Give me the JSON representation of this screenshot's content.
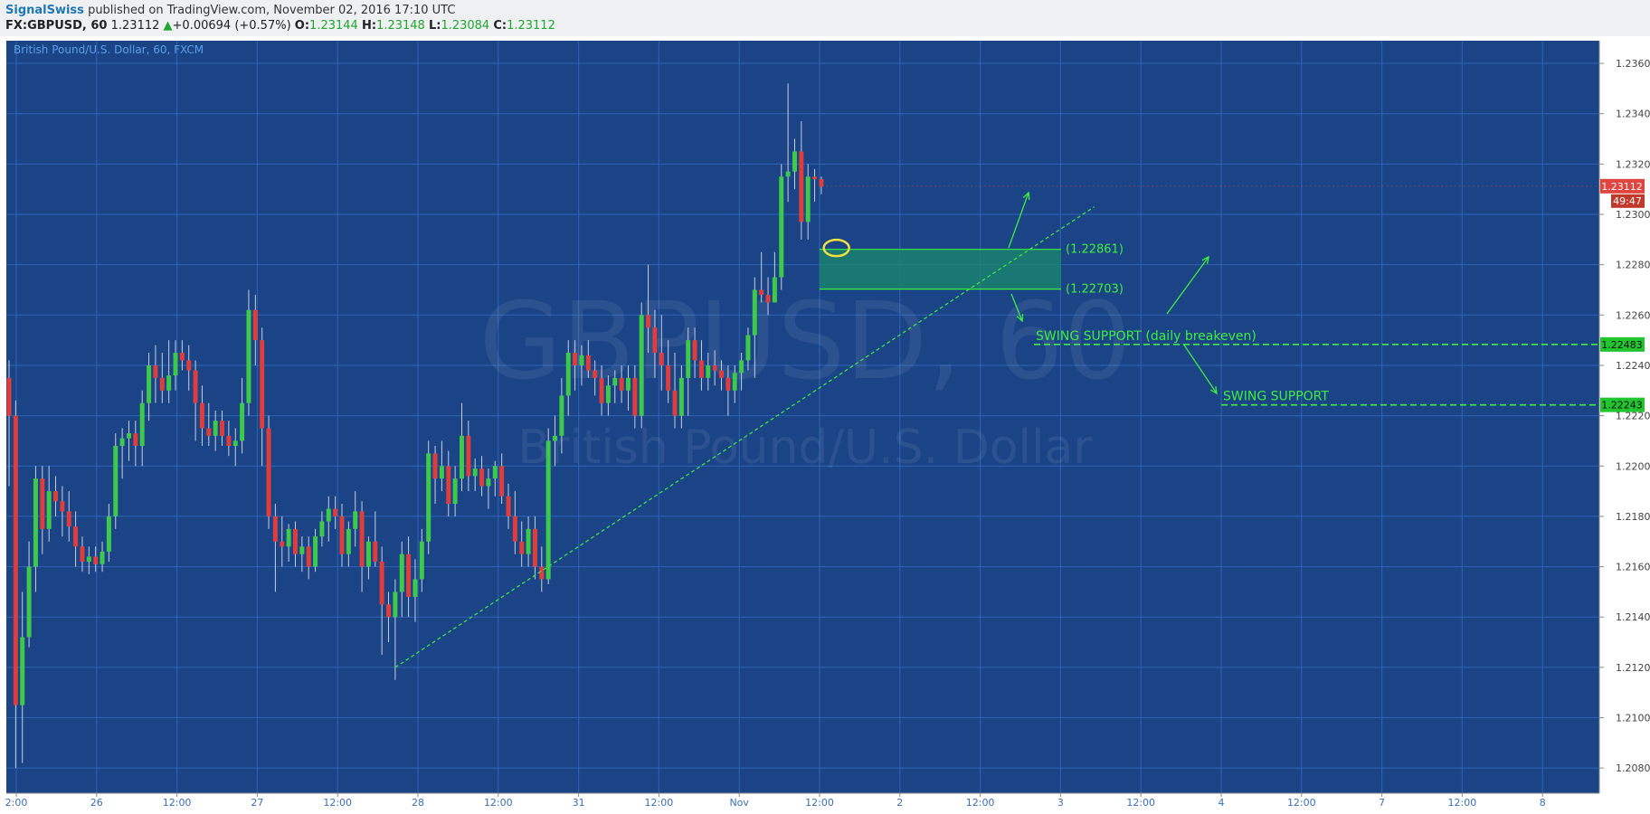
{
  "header": {
    "author": "SignalSwiss",
    "published": "published on TradingView.com, November 02, 2016 17:10 UTC",
    "symbol": "FX:GBPUSD, 60",
    "last": "1.23112",
    "change": "+0.00694 (+0.57%)",
    "o_label": "O:",
    "o": "1.23144",
    "h_label": "H:",
    "h": "1.23148",
    "l_label": "L:",
    "l": "1.23084",
    "c_label": "C:",
    "c": "1.23112"
  },
  "colors": {
    "background": "#1b4487",
    "grid": "#2e63b4",
    "up": "#3dc94a",
    "down": "#e03c3c",
    "annotation": "#3dee3d",
    "accent": "#f0e040",
    "price_tag": "#e0453f"
  },
  "chart_data": {
    "type": "candlestick",
    "title": "British Pound/U.S. Dollar, 60, FXCM",
    "watermark": "GBPUSD, 60",
    "watermark_sub": "British Pound/U.S. Dollar",
    "ylim": [
      1.207,
      1.2369
    ],
    "y_ticks": [
      "1.20800",
      "1.21000",
      "1.21200",
      "1.21400",
      "1.21600",
      "1.21800",
      "1.22000",
      "1.22200",
      "1.22400",
      "1.22600",
      "1.22800",
      "1.23000",
      "1.23200",
      "1.23400",
      "1.23600"
    ],
    "x_ticks": [
      "2:00",
      "26",
      "12:00",
      "27",
      "12:00",
      "28",
      "12:00",
      "31",
      "12:00",
      "Nov",
      "12:00",
      "2",
      "12:00",
      "3",
      "12:00",
      "4",
      "12:00",
      "7",
      "12:00",
      "8"
    ],
    "candles": [
      [
        1.2235,
        1.2242,
        1.2192,
        1.222
      ],
      [
        1.222,
        1.2226,
        1.208,
        1.2105
      ],
      [
        1.2105,
        1.215,
        1.2082,
        1.2132
      ],
      [
        1.2132,
        1.217,
        1.2128,
        1.216
      ],
      [
        1.216,
        1.22,
        1.215,
        1.2195
      ],
      [
        1.2195,
        1.22,
        1.2165,
        1.2175
      ],
      [
        1.2175,
        1.22,
        1.217,
        1.219
      ],
      [
        1.219,
        1.2196,
        1.218,
        1.2186
      ],
      [
        1.2186,
        1.2192,
        1.2172,
        1.2182
      ],
      [
        1.2182,
        1.219,
        1.217,
        1.2176
      ],
      [
        1.2176,
        1.2182,
        1.216,
        1.2168
      ],
      [
        1.2168,
        1.2172,
        1.2158,
        1.2162
      ],
      [
        1.2162,
        1.2168,
        1.2157,
        1.2164
      ],
      [
        1.2164,
        1.2168,
        1.2158,
        1.2161
      ],
      [
        1.2161,
        1.217,
        1.2158,
        1.2166
      ],
      [
        1.2166,
        1.2185,
        1.2162,
        1.218
      ],
      [
        1.218,
        1.2213,
        1.2175,
        1.2208
      ],
      [
        1.2208,
        1.2215,
        1.2195,
        1.2211
      ],
      [
        1.2211,
        1.2218,
        1.2202,
        1.2213
      ],
      [
        1.2213,
        1.2218,
        1.22,
        1.2208
      ],
      [
        1.2208,
        1.223,
        1.22,
        1.2225
      ],
      [
        1.2225,
        1.2245,
        1.2218,
        1.224
      ],
      [
        1.224,
        1.2248,
        1.2225,
        1.2235
      ],
      [
        1.2235,
        1.2245,
        1.2225,
        1.223
      ],
      [
        1.223,
        1.225,
        1.2225,
        1.2236
      ],
      [
        1.2236,
        1.225,
        1.223,
        1.2245
      ],
      [
        1.2245,
        1.225,
        1.2238,
        1.2242
      ],
      [
        1.2242,
        1.2248,
        1.223,
        1.2238
      ],
      [
        1.2238,
        1.2242,
        1.221,
        1.2225
      ],
      [
        1.2225,
        1.2232,
        1.2208,
        1.2215
      ],
      [
        1.2215,
        1.2225,
        1.2208,
        1.2212
      ],
      [
        1.2212,
        1.2222,
        1.2206,
        1.2218
      ],
      [
        1.2218,
        1.2222,
        1.2208,
        1.2212
      ],
      [
        1.2212,
        1.2218,
        1.2204,
        1.2208
      ],
      [
        1.2208,
        1.2215,
        1.22,
        1.221
      ],
      [
        1.221,
        1.2235,
        1.2205,
        1.2225
      ],
      [
        1.2225,
        1.227,
        1.222,
        1.2262
      ],
      [
        1.2262,
        1.2268,
        1.224,
        1.225
      ],
      [
        1.225,
        1.2255,
        1.22,
        1.2215
      ],
      [
        1.2215,
        1.222,
        1.2175,
        1.218
      ],
      [
        1.218,
        1.2185,
        1.215,
        1.217
      ],
      [
        1.217,
        1.218,
        1.216,
        1.2168
      ],
      [
        1.2168,
        1.2177,
        1.2162,
        1.2175
      ],
      [
        1.2175,
        1.2178,
        1.216,
        1.2165
      ],
      [
        1.2165,
        1.2172,
        1.2158,
        1.2168
      ],
      [
        1.2168,
        1.2172,
        1.2155,
        1.216
      ],
      [
        1.216,
        1.2175,
        1.2158,
        1.2172
      ],
      [
        1.2172,
        1.2182,
        1.2168,
        1.2178
      ],
      [
        1.2178,
        1.2188,
        1.217,
        1.2183
      ],
      [
        1.2183,
        1.2188,
        1.2175,
        1.218
      ],
      [
        1.218,
        1.2185,
        1.216,
        1.2165
      ],
      [
        1.2165,
        1.2178,
        1.216,
        1.2175
      ],
      [
        1.2175,
        1.219,
        1.2168,
        1.2182
      ],
      [
        1.2182,
        1.2186,
        1.215,
        1.216
      ],
      [
        1.216,
        1.2172,
        1.2155,
        1.217
      ],
      [
        1.217,
        1.2182,
        1.216,
        1.2162
      ],
      [
        1.2162,
        1.2168,
        1.2125,
        1.2145
      ],
      [
        1.2145,
        1.215,
        1.213,
        1.214
      ],
      [
        1.214,
        1.2155,
        1.2115,
        1.215
      ],
      [
        1.215,
        1.217,
        1.214,
        1.2165
      ],
      [
        1.2165,
        1.2172,
        1.214,
        1.2148
      ],
      [
        1.2148,
        1.2163,
        1.2138,
        1.2155
      ],
      [
        1.2155,
        1.2175,
        1.215,
        1.217
      ],
      [
        1.217,
        1.221,
        1.2165,
        1.2205
      ],
      [
        1.2205,
        1.2208,
        1.2185,
        1.2195
      ],
      [
        1.2195,
        1.221,
        1.219,
        1.22
      ],
      [
        1.22,
        1.2206,
        1.218,
        1.2185
      ],
      [
        1.2185,
        1.22,
        1.218,
        1.2195
      ],
      [
        1.2195,
        1.2225,
        1.219,
        1.2212
      ],
      [
        1.2212,
        1.2218,
        1.219,
        1.2196
      ],
      [
        1.2196,
        1.2203,
        1.219,
        1.2199
      ],
      [
        1.2199,
        1.2204,
        1.2188,
        1.2192
      ],
      [
        1.2192,
        1.2199,
        1.2183,
        1.2195
      ],
      [
        1.2195,
        1.2202,
        1.2188,
        1.22
      ],
      [
        1.22,
        1.2205,
        1.2185,
        1.2188
      ],
      [
        1.2188,
        1.2193,
        1.2175,
        1.218
      ],
      [
        1.218,
        1.219,
        1.2165,
        1.217
      ],
      [
        1.217,
        1.2178,
        1.216,
        1.2165
      ],
      [
        1.2165,
        1.218,
        1.216,
        1.2175
      ],
      [
        1.2175,
        1.218,
        1.2155,
        1.216
      ],
      [
        1.216,
        1.2168,
        1.215,
        1.2155
      ],
      [
        1.2155,
        1.2215,
        1.2153,
        1.221
      ],
      [
        1.221,
        1.222,
        1.22,
        1.2212
      ],
      [
        1.2212,
        1.2235,
        1.2205,
        1.2228
      ],
      [
        1.2228,
        1.225,
        1.222,
        1.2245
      ],
      [
        1.2245,
        1.225,
        1.223,
        1.224
      ],
      [
        1.224,
        1.2248,
        1.2232,
        1.2244
      ],
      [
        1.2244,
        1.225,
        1.2235,
        1.2238
      ],
      [
        1.2238,
        1.2242,
        1.2228,
        1.2235
      ],
      [
        1.2235,
        1.224,
        1.222,
        1.2225
      ],
      [
        1.2225,
        1.2236,
        1.222,
        1.2232
      ],
      [
        1.2232,
        1.2238,
        1.2225,
        1.2235
      ],
      [
        1.2235,
        1.224,
        1.2225,
        1.223
      ],
      [
        1.223,
        1.224,
        1.2222,
        1.2235
      ],
      [
        1.2235,
        1.224,
        1.2215,
        1.222
      ],
      [
        1.222,
        1.2265,
        1.2215,
        1.226
      ],
      [
        1.226,
        1.228,
        1.2245,
        1.2255
      ],
      [
        1.2255,
        1.2262,
        1.2235,
        1.2245
      ],
      [
        1.2245,
        1.226,
        1.223,
        1.224
      ],
      [
        1.224,
        1.225,
        1.2225,
        1.223
      ],
      [
        1.223,
        1.2245,
        1.2215,
        1.222
      ],
      [
        1.222,
        1.224,
        1.2215,
        1.2235
      ],
      [
        1.2235,
        1.2255,
        1.222,
        1.225
      ],
      [
        1.225,
        1.2255,
        1.2235,
        1.2242
      ],
      [
        1.2242,
        1.225,
        1.223,
        1.2235
      ],
      [
        1.2235,
        1.2245,
        1.223,
        1.224
      ],
      [
        1.224,
        1.2246,
        1.2232,
        1.2238
      ],
      [
        1.2238,
        1.2242,
        1.223,
        1.2235
      ],
      [
        1.2235,
        1.224,
        1.222,
        1.223
      ],
      [
        1.223,
        1.224,
        1.2225,
        1.2237
      ],
      [
        1.2237,
        1.2245,
        1.223,
        1.2242
      ],
      [
        1.2242,
        1.2255,
        1.2238,
        1.2252
      ],
      [
        1.2252,
        1.2275,
        1.2235,
        1.227
      ],
      [
        1.227,
        1.2285,
        1.2265,
        1.2268
      ],
      [
        1.2268,
        1.2275,
        1.226,
        1.2265
      ],
      [
        1.2265,
        1.2285,
        1.2265,
        1.2275
      ],
      [
        1.2275,
        1.232,
        1.227,
        1.2315
      ],
      [
        1.2315,
        1.2352,
        1.2305,
        1.2317
      ],
      [
        1.2317,
        1.233,
        1.231,
        1.2325
      ],
      [
        1.2325,
        1.2337,
        1.229,
        1.2297
      ],
      [
        1.2297,
        1.232,
        1.229,
        1.2315
      ],
      [
        1.2315,
        1.2318,
        1.2305,
        1.2314
      ],
      [
        1.2314,
        1.2315,
        1.2308,
        1.2311
      ]
    ],
    "trendline": {
      "from": {
        "candle": 58,
        "price": 1.212
      },
      "to": {
        "candle": 163,
        "price": 1.2303
      }
    },
    "zone": {
      "upper": 1.22861,
      "lower": 1.22703,
      "upper_label": "(1.22861)",
      "lower_label": "(1.22703)"
    },
    "levels": [
      {
        "price": 1.22483,
        "label": "SWING SUPPORT (daily breakeven)",
        "tag": "1.22483"
      },
      {
        "price": 1.22243,
        "label": "SWING SUPPORT",
        "tag": "1.22243"
      }
    ],
    "last_price": {
      "value": 1.23112,
      "tag": "1.23112",
      "countdown": "49:47"
    }
  }
}
